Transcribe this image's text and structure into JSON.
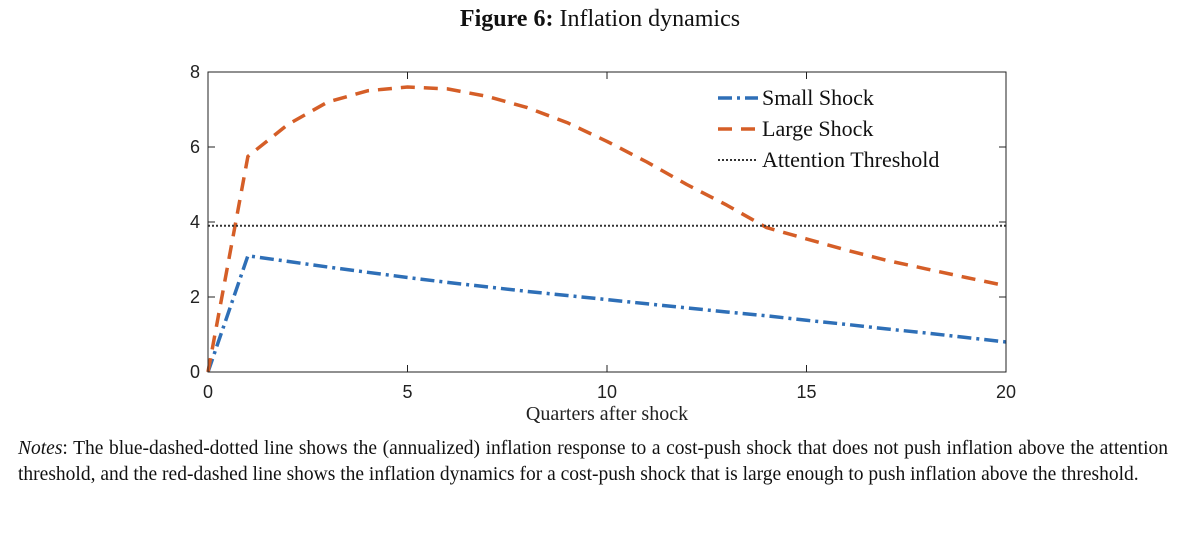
{
  "figure": {
    "label": "Figure 6:",
    "title": "Inflation dynamics"
  },
  "notes": {
    "label": "Notes",
    "text": ": The blue-dashed-dotted line shows the (annualized) inflation response to a cost-push shock that does not push inflation above the attention threshold, and the red-dashed line shows the inflation dynamics for a cost-push shock that is large enough to push inflation above the threshold."
  },
  "chart_data": {
    "type": "line",
    "title": "Inflation dynamics",
    "xlabel": "Quarters after shock",
    "ylabel": "",
    "xlim": [
      0,
      20
    ],
    "ylim": [
      0,
      8
    ],
    "xticks": [
      0,
      5,
      10,
      15,
      20
    ],
    "yticks": [
      0,
      2,
      4,
      6,
      8
    ],
    "legend_position": "top-right",
    "series": [
      {
        "name": "Small Shock",
        "color": "#2e6fb7",
        "style": "dashdot",
        "x": [
          0,
          1,
          2,
          3,
          4,
          5,
          6,
          7,
          8,
          9,
          10,
          11,
          12,
          13,
          14,
          15,
          16,
          17,
          18,
          19,
          20
        ],
        "y": [
          0,
          3.1,
          2.95,
          2.8,
          2.66,
          2.52,
          2.39,
          2.27,
          2.15,
          2.04,
          1.93,
          1.82,
          1.71,
          1.6,
          1.5,
          1.38,
          1.27,
          1.15,
          1.04,
          0.92,
          0.8
        ]
      },
      {
        "name": "Large Shock",
        "color": "#d55e27",
        "style": "dashed",
        "x": [
          0,
          1,
          2,
          3,
          4,
          5,
          6,
          7,
          8,
          9,
          10,
          11,
          12,
          13,
          14,
          15,
          16,
          17,
          18,
          19,
          20
        ],
        "y": [
          0,
          5.75,
          6.6,
          7.2,
          7.5,
          7.6,
          7.55,
          7.35,
          7.05,
          6.65,
          6.15,
          5.6,
          5.0,
          4.45,
          3.85,
          3.55,
          3.25,
          2.98,
          2.75,
          2.52,
          2.3
        ]
      },
      {
        "name": "Attention Threshold",
        "color": "#333333",
        "style": "dotted",
        "x": [
          0,
          20
        ],
        "y": [
          3.9,
          3.9
        ]
      }
    ]
  }
}
